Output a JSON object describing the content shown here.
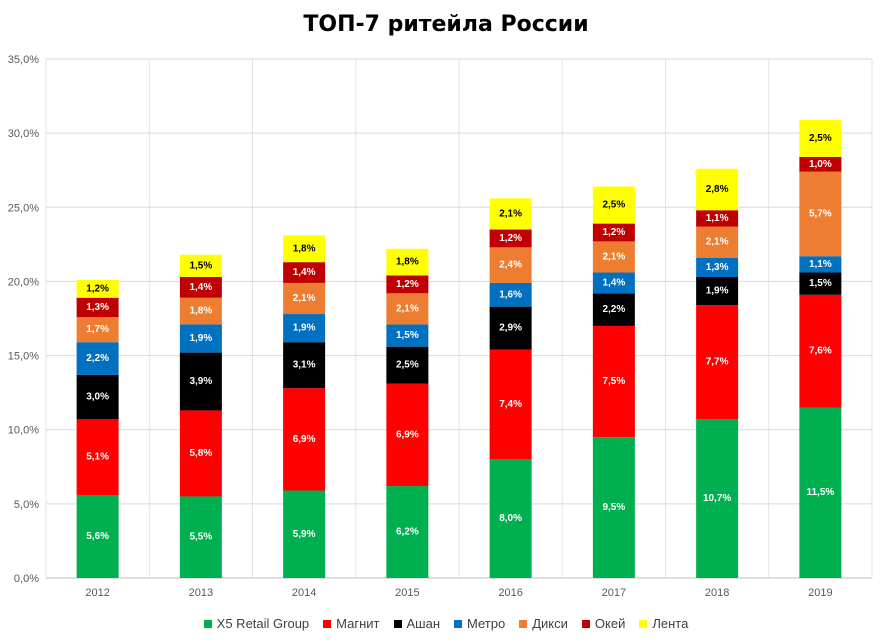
{
  "chart_data": {
    "type": "bar",
    "stacked": true,
    "title": "ТОП-7 ритейла России",
    "xlabel": "",
    "ylabel": "",
    "categories": [
      "2012",
      "2013",
      "2014",
      "2015",
      "2016",
      "2017",
      "2018",
      "2019"
    ],
    "ylim": [
      0,
      35
    ],
    "yticks": [
      "0,0%",
      "5,0%",
      "10,0%",
      "15,0%",
      "20,0%",
      "25,0%",
      "30,0%",
      "35,0%"
    ],
    "grid": true,
    "legend_position": "bottom",
    "series": [
      {
        "name": "X5 Retail Group",
        "color": "#00B050",
        "label_color": "#ffffff",
        "values": [
          5.6,
          5.5,
          5.9,
          6.2,
          8.0,
          9.5,
          10.7,
          11.5
        ],
        "labels": [
          "5,6%",
          "5,5%",
          "5,9%",
          "6,2%",
          "8,0%",
          "9,5%",
          "10,7%",
          "11,5%"
        ]
      },
      {
        "name": "Магнит",
        "color": "#FF0000",
        "label_color": "#ffffff",
        "values": [
          5.1,
          5.8,
          6.9,
          6.9,
          7.4,
          7.5,
          7.7,
          7.6
        ],
        "labels": [
          "5,1%",
          "5,8%",
          "6,9%",
          "6,9%",
          "7,4%",
          "7,5%",
          "7,7%",
          "7,6%"
        ]
      },
      {
        "name": "Ашан",
        "color": "#000000",
        "label_color": "#ffffff",
        "values": [
          3.0,
          3.9,
          3.1,
          2.5,
          2.9,
          2.2,
          1.9,
          1.5
        ],
        "labels": [
          "3,0%",
          "3,9%",
          "3,1%",
          "2,5%",
          "2,9%",
          "2,2%",
          "1,9%",
          "1,5%"
        ]
      },
      {
        "name": "Метро",
        "color": "#0070C0",
        "label_color": "#ffffff",
        "values": [
          2.2,
          1.9,
          1.9,
          1.5,
          1.6,
          1.4,
          1.3,
          1.1
        ],
        "labels": [
          "2,2%",
          "1,9%",
          "1,9%",
          "1,5%",
          "1,6%",
          "1,4%",
          "1,3%",
          "1,1%"
        ]
      },
      {
        "name": "Дикси",
        "color": "#ED7D31",
        "label_color": "#ffffff",
        "values": [
          1.7,
          1.8,
          2.1,
          2.1,
          2.4,
          2.1,
          2.1,
          5.7
        ],
        "labels": [
          "1,7%",
          "1,8%",
          "2,1%",
          "2,1%",
          "2,4%",
          "2,1%",
          "2,1%",
          "5,7%"
        ]
      },
      {
        "name": "Окей",
        "color": "#C00000",
        "label_color": "#ffffff",
        "values": [
          1.3,
          1.4,
          1.4,
          1.2,
          1.2,
          1.2,
          1.1,
          1.0
        ],
        "labels": [
          "1,3%",
          "1,4%",
          "1,4%",
          "1,2%",
          "1,2%",
          "1,2%",
          "1,1%",
          "1,0%"
        ]
      },
      {
        "name": "Лента",
        "color": "#FFFF00",
        "label_color": "#000000",
        "values": [
          1.2,
          1.5,
          1.8,
          1.8,
          2.1,
          2.5,
          2.8,
          2.5
        ],
        "labels": [
          "1,2%",
          "1,5%",
          "1,8%",
          "1,8%",
          "2,1%",
          "2,5%",
          "2,8%",
          "2,5%"
        ]
      }
    ]
  }
}
